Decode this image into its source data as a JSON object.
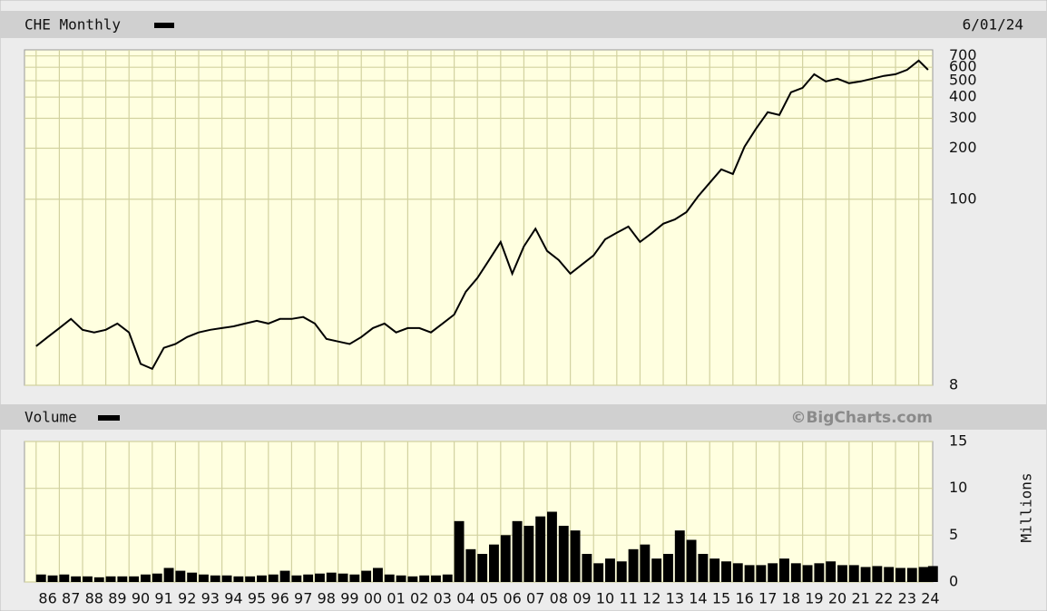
{
  "chart_data": [
    {
      "type": "line",
      "title": "CHE Monthly",
      "subtitle": "6/01/24",
      "log_scale": true,
      "grid": true,
      "color": "#000000",
      "x": [
        1986.0,
        1986.5,
        1987.0,
        1987.5,
        1988.0,
        1988.5,
        1989.0,
        1989.5,
        1990.0,
        1990.5,
        1991.0,
        1991.5,
        1992.0,
        1992.5,
        1993.0,
        1993.5,
        1994.0,
        1994.5,
        1995.0,
        1995.5,
        1996.0,
        1996.5,
        1997.0,
        1997.5,
        1998.0,
        1998.5,
        1999.0,
        1999.5,
        2000.0,
        2000.5,
        2001.0,
        2001.5,
        2002.0,
        2002.5,
        2003.0,
        2003.5,
        2004.0,
        2004.5,
        2005.0,
        2005.5,
        2006.0,
        2006.5,
        2007.0,
        2007.5,
        2008.0,
        2008.5,
        2009.0,
        2009.5,
        2010.0,
        2010.5,
        2011.0,
        2011.5,
        2012.0,
        2012.5,
        2013.0,
        2013.5,
        2014.0,
        2014.5,
        2015.0,
        2015.5,
        2016.0,
        2016.5,
        2017.0,
        2017.5,
        2018.0,
        2018.5,
        2019.0,
        2019.5,
        2020.0,
        2020.5,
        2021.0,
        2021.5,
        2022.0,
        2022.5,
        2023.0,
        2023.5,
        2024.0,
        2024.4
      ],
      "values": [
        13.6,
        15.4,
        17.4,
        19.7,
        17.0,
        16.4,
        17.0,
        18.5,
        16.4,
        10.7,
        10.0,
        13.3,
        14.0,
        15.4,
        16.4,
        17.0,
        17.4,
        17.8,
        18.5,
        19.2,
        18.5,
        19.7,
        19.7,
        20.2,
        18.5,
        15.0,
        14.5,
        14.0,
        15.4,
        17.4,
        18.5,
        16.4,
        17.4,
        17.4,
        16.4,
        18.5,
        20.9,
        28.5,
        34.3,
        43.8,
        56,
        36.4,
        52.7,
        67,
        49.6,
        43.8,
        36.4,
        41.2,
        46.6,
        58,
        63.4,
        69,
        56,
        63,
        71.7,
        76,
        84,
        104,
        125,
        150,
        141,
        204,
        261,
        326,
        314,
        427,
        454,
        546,
        495,
        514,
        483,
        495,
        514,
        534,
        546,
        580,
        657,
        580
      ],
      "xlim": [
        1985.5,
        2024.6
      ],
      "ylim": [
        8,
        760
      ],
      "yticks": [
        8,
        100,
        200,
        300,
        400,
        500,
        600,
        700
      ]
    },
    {
      "type": "bar",
      "title": "Volume",
      "annotation": "©BigCharts.com",
      "y_label": "Millions",
      "grid": true,
      "color": "#000000",
      "x": [
        1986.0,
        1986.5,
        1987.0,
        1987.5,
        1988.0,
        1988.5,
        1989.0,
        1989.5,
        1990.0,
        1990.5,
        1991.0,
        1991.5,
        1992.0,
        1992.5,
        1993.0,
        1993.5,
        1994.0,
        1994.5,
        1995.0,
        1995.5,
        1996.0,
        1996.5,
        1997.0,
        1997.5,
        1998.0,
        1998.5,
        1999.0,
        1999.5,
        2000.0,
        2000.5,
        2001.0,
        2001.5,
        2002.0,
        2002.5,
        2003.0,
        2003.5,
        2004.0,
        2004.5,
        2005.0,
        2005.5,
        2006.0,
        2006.5,
        2007.0,
        2007.5,
        2008.0,
        2008.5,
        2009.0,
        2009.5,
        2010.0,
        2010.5,
        2011.0,
        2011.5,
        2012.0,
        2012.5,
        2013.0,
        2013.5,
        2014.0,
        2014.5,
        2015.0,
        2015.5,
        2016.0,
        2016.5,
        2017.0,
        2017.5,
        2018.0,
        2018.5,
        2019.0,
        2019.5,
        2020.0,
        2020.5,
        2021.0,
        2021.5,
        2022.0,
        2022.5,
        2023.0,
        2023.5,
        2024.0,
        2024.4
      ],
      "values": [
        0.8,
        0.7,
        0.8,
        0.6,
        0.6,
        0.5,
        0.6,
        0.6,
        0.6,
        0.8,
        0.9,
        1.5,
        1.2,
        1.0,
        0.8,
        0.7,
        0.7,
        0.6,
        0.6,
        0.7,
        0.8,
        1.2,
        0.7,
        0.8,
        0.9,
        1.0,
        0.9,
        0.8,
        1.2,
        1.5,
        0.8,
        0.7,
        0.6,
        0.7,
        0.7,
        0.8,
        6.5,
        3.5,
        3.0,
        4.0,
        5.0,
        6.5,
        6.0,
        7.0,
        7.5,
        6.0,
        5.5,
        3.0,
        2.0,
        2.5,
        2.2,
        3.5,
        4.0,
        2.5,
        3.0,
        5.5,
        4.5,
        3.0,
        2.5,
        2.2,
        2.0,
        1.8,
        1.8,
        2.0,
        2.5,
        2.0,
        1.8,
        2.0,
        2.2,
        1.8,
        1.8,
        1.6,
        1.7,
        1.6,
        1.5,
        1.5,
        1.6,
        1.7
      ],
      "xlim": [
        1985.5,
        2024.6
      ],
      "ylim": [
        0,
        15
      ],
      "yticks": [
        0,
        5,
        10,
        15
      ],
      "xticks": [
        {
          "value": 1986,
          "label": "86"
        },
        {
          "value": 1987,
          "label": "87"
        },
        {
          "value": 1988,
          "label": "88"
        },
        {
          "value": 1989,
          "label": "89"
        },
        {
          "value": 1990,
          "label": "90"
        },
        {
          "value": 1991,
          "label": "91"
        },
        {
          "value": 1992,
          "label": "92"
        },
        {
          "value": 1993,
          "label": "93"
        },
        {
          "value": 1994,
          "label": "94"
        },
        {
          "value": 1995,
          "label": "95"
        },
        {
          "value": 1996,
          "label": "96"
        },
        {
          "value": 1997,
          "label": "97"
        },
        {
          "value": 1998,
          "label": "98"
        },
        {
          "value": 1999,
          "label": "99"
        },
        {
          "value": 2000,
          "label": "00"
        },
        {
          "value": 2001,
          "label": "01"
        },
        {
          "value": 2002,
          "label": "02"
        },
        {
          "value": 2003,
          "label": "03"
        },
        {
          "value": 2004,
          "label": "04"
        },
        {
          "value": 2005,
          "label": "05"
        },
        {
          "value": 2006,
          "label": "06"
        },
        {
          "value": 2007,
          "label": "07"
        },
        {
          "value": 2008,
          "label": "08"
        },
        {
          "value": 2009,
          "label": "09"
        },
        {
          "value": 2010,
          "label": "10"
        },
        {
          "value": 2011,
          "label": "11"
        },
        {
          "value": 2012,
          "label": "12"
        },
        {
          "value": 2013,
          "label": "13"
        },
        {
          "value": 2014,
          "label": "14"
        },
        {
          "value": 2015,
          "label": "15"
        },
        {
          "value": 2016,
          "label": "16"
        },
        {
          "value": 2017,
          "label": "17"
        },
        {
          "value": 2018,
          "label": "18"
        },
        {
          "value": 2019,
          "label": "19"
        },
        {
          "value": 2020,
          "label": "20"
        },
        {
          "value": 2021,
          "label": "21"
        },
        {
          "value": 2022,
          "label": "22"
        },
        {
          "value": 2023,
          "label": "23"
        },
        {
          "value": 2024,
          "label": "24"
        }
      ]
    }
  ]
}
